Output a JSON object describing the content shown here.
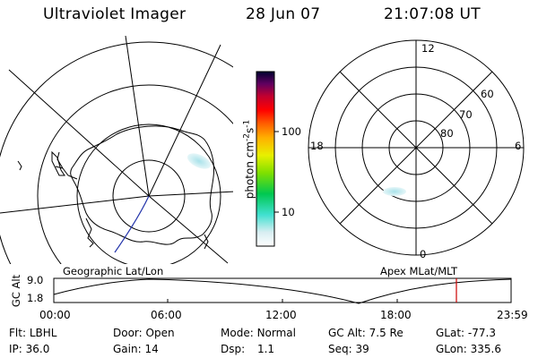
{
  "header": {
    "title": "Ultraviolet Imager",
    "date": "28 Jun 07",
    "time": "21:07:08 UT"
  },
  "colorbar": {
    "unit": "photon cm",
    "unit_sup1": "-2",
    "unit_mid": "s",
    "unit_sup2": "-1",
    "ticks": [
      "100",
      "10"
    ]
  },
  "polar_plot": {
    "mlt_labels": {
      "top": "12",
      "left": "18",
      "right": "6",
      "bottom": "0"
    },
    "lat_labels": [
      "60",
      "70",
      "80"
    ]
  },
  "panel_labels": {
    "left": "Geographic Lat/Lon",
    "right": "Apex MLat/MLT"
  },
  "gc_alt_plot": {
    "axis_label": "GC Alt",
    "y_top": "9.0",
    "y_bottom": "1.8",
    "x_ticks": [
      "00:00",
      "06:00",
      "12:00",
      "18:00",
      "23:59"
    ]
  },
  "status": {
    "flt": {
      "label": "Flt:",
      "value": "LBHL"
    },
    "door": {
      "label": "Door:",
      "value": "Open"
    },
    "mode": {
      "label": "Mode:",
      "value": "Normal"
    },
    "gcalt": {
      "label": "GC Alt:",
      "value": "7.5 Re"
    },
    "glat": {
      "label": "GLat:",
      "value": "-77.3"
    },
    "ip": {
      "label": "IP:",
      "value": "36.0"
    },
    "gain": {
      "label": "Gain:",
      "value": "14"
    },
    "dsp": {
      "label": "Dsp:",
      "value": "1.1"
    },
    "seq": {
      "label": "Seq:",
      "value": "39"
    },
    "glon": {
      "label": "GLon:",
      "value": "335.6"
    }
  },
  "colors": {
    "line": "#000000",
    "orbit_marker": "#cc0000",
    "track": "#2233aa",
    "aurora": "#bfe9ee"
  }
}
